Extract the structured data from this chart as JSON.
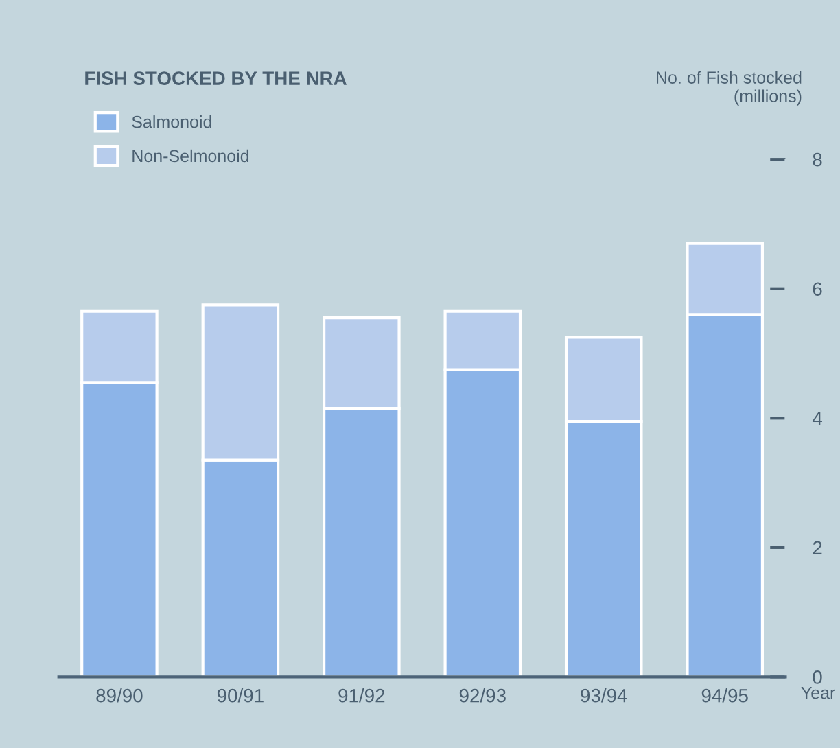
{
  "chart_data": {
    "type": "bar",
    "title": "FISH STOCKED BY THE NRA",
    "xlabel": "Year",
    "ylabel": "No. of Fish stocked\n(millions)",
    "categories": [
      "89/90",
      "90/91",
      "91/92",
      "92/93",
      "93/94",
      "94/95"
    ],
    "stacked": true,
    "series": [
      {
        "name": "Salmonoid",
        "color": "#8cb4e8",
        "values": [
          4.55,
          3.35,
          4.15,
          4.75,
          3.95,
          5.6
        ]
      },
      {
        "name": "Non-Selmonoid",
        "color": "#b7ccec",
        "values": [
          1.1,
          2.4,
          1.4,
          0.9,
          1.3,
          1.1
        ]
      }
    ],
    "ylim": [
      0,
      8
    ],
    "yticks": [
      0,
      2,
      4,
      6,
      8
    ],
    "grid": false,
    "legend": "top left"
  }
}
